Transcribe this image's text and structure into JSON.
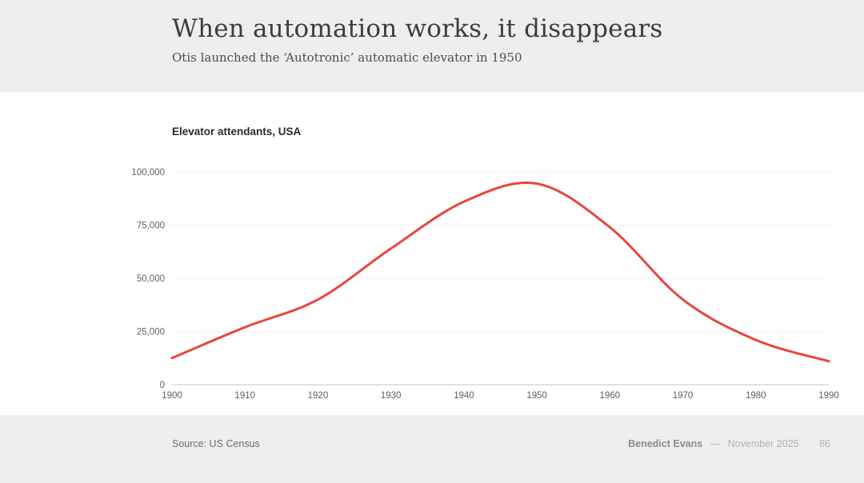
{
  "slide": {
    "title": "When automation works, it disappears",
    "subtitle": "Otis launched the ‘Autotronic’ automatic elevator in 1950",
    "footer": {
      "source": "Source: US Census",
      "author": "Benedict Evans",
      "separator": "—",
      "date": "November 2025",
      "page": "86"
    }
  },
  "chart_data": {
    "type": "line",
    "title": "Elevator attendants, USA",
    "x": [
      1900,
      1910,
      1920,
      1930,
      1940,
      1950,
      1960,
      1970,
      1980,
      1990
    ],
    "xtick_labels": [
      "1900",
      "1910",
      "1920",
      "1930",
      "1940",
      "1950",
      "1960",
      "1970",
      "1980",
      "1990"
    ],
    "series": [
      {
        "name": "Elevator attendants, USA",
        "color": "#e8463e",
        "values": [
          12500,
          27000,
          40000,
          64000,
          86000,
          94500,
          74000,
          40000,
          21000,
          11000
        ]
      }
    ],
    "xlabel": "",
    "ylabel": "",
    "ylim": [
      0,
      100000
    ],
    "yticks": [
      0,
      25000,
      50000,
      75000,
      100000
    ],
    "ytick_labels": [
      "0",
      "25,000",
      "50,000",
      "75,000",
      "100,000"
    ],
    "legend": "none",
    "grid": "horizontal-dotted",
    "annotations": []
  },
  "style": {
    "accent_red": "#e8463e",
    "band_gray": "#eeeeee",
    "grid_color": "#d9d9d9",
    "axis_color": "#c6c6c6",
    "tick_color": "#606060"
  }
}
